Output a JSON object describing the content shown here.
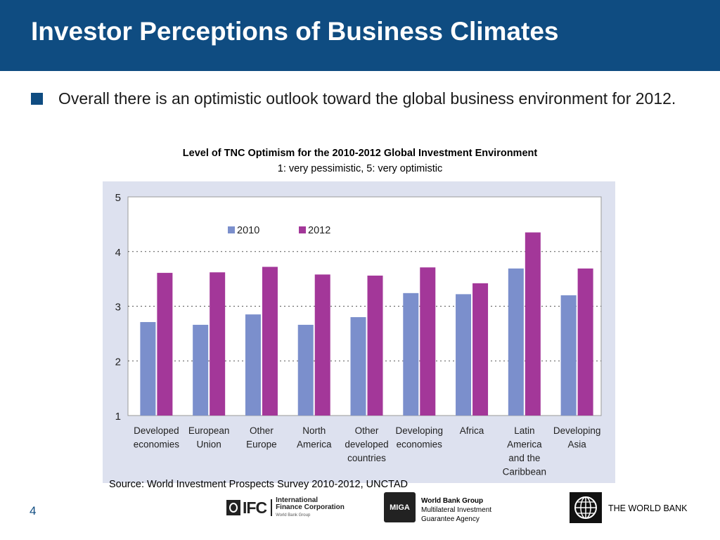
{
  "slide": {
    "title": "Investor Perceptions of Business Climates",
    "bullet_text": "Overall there is an optimistic outlook toward the global business environment for 2012.",
    "page_number": "4",
    "source": "Source: World Investment Prospects Survey 2010-2012, UNCTAD"
  },
  "footer": {
    "ifc_mark": "IFC",
    "ifc_name_line1": "International",
    "ifc_name_line2": "Finance Corporation",
    "ifc_sub": "World Bank Group",
    "miga_mark": "MIGA",
    "miga_line1": "World Bank Group",
    "miga_line2": "Multilateral Investment",
    "miga_line3": "Guarantee Agency",
    "worldbank_label": "THE WORLD BANK"
  },
  "colors": {
    "title_bar": "#0f4c81",
    "chart_panel": "#dde1ef",
    "series_2010": "#7b8fcc",
    "series_2012": "#a33799"
  },
  "chart_data": {
    "type": "bar",
    "title": "Level of TNC Optimism for the 2010-2012 Global Investment Environment",
    "subtitle": "1: very pessimistic, 5: very optimistic",
    "categories": [
      [
        "Developed",
        "economies"
      ],
      [
        "European",
        "Union"
      ],
      [
        "Other",
        "Europe"
      ],
      [
        "North",
        "America"
      ],
      [
        "Other",
        "developed",
        "countries"
      ],
      [
        "Developing",
        "economies"
      ],
      [
        "Africa"
      ],
      [
        "Latin",
        "America",
        "and the",
        "Caribbean"
      ],
      [
        "Developing",
        "Asia"
      ]
    ],
    "series": [
      {
        "name": "2010",
        "color": "#7b8fcc",
        "values": [
          2.71,
          2.66,
          2.85,
          2.66,
          2.8,
          3.24,
          3.22,
          3.69,
          3.2
        ]
      },
      {
        "name": "2012",
        "color": "#a33799",
        "values": [
          3.61,
          3.62,
          3.72,
          3.58,
          3.56,
          3.71,
          3.42,
          4.35,
          3.69
        ]
      }
    ],
    "ylim": [
      1,
      5
    ],
    "yticks": [
      1,
      2,
      3,
      4,
      5
    ],
    "grid": "dotted horizontal",
    "legend": "top-center"
  }
}
